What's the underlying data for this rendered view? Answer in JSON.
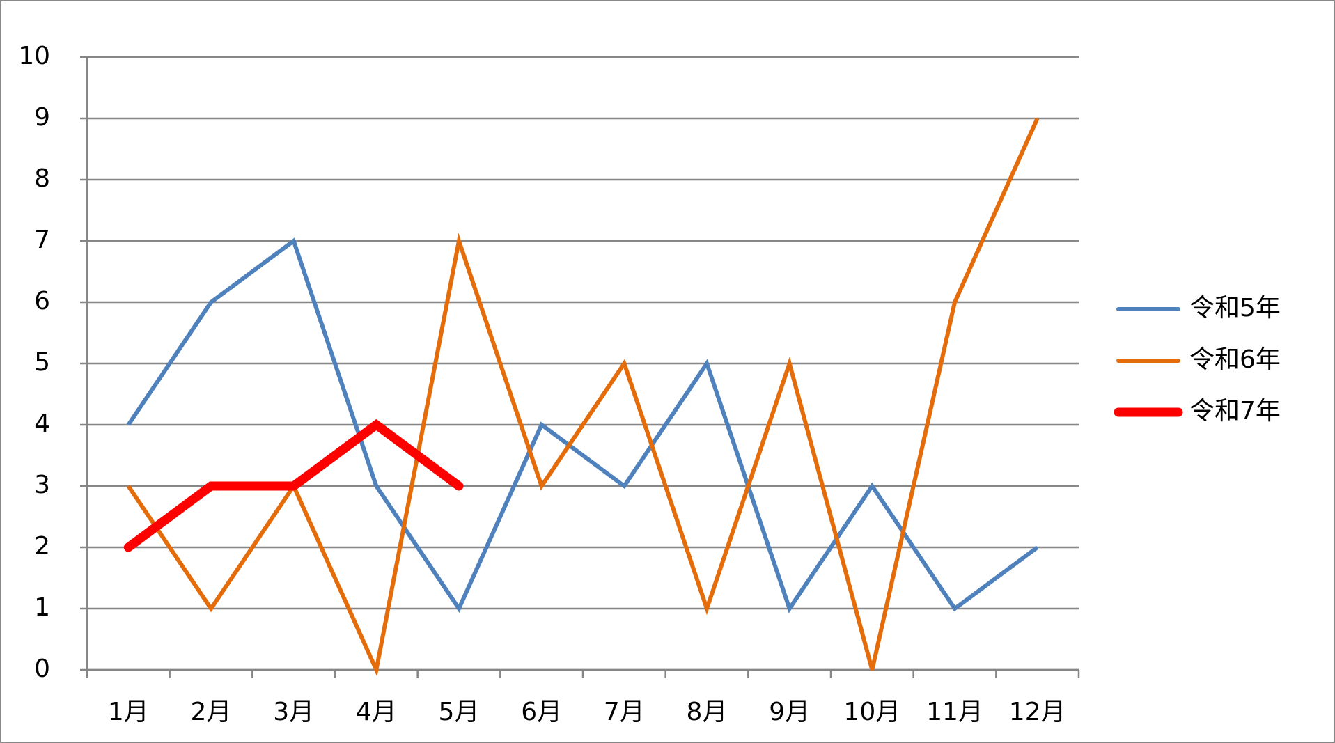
{
  "chart_data": {
    "type": "line",
    "categories": [
      "1月",
      "2月",
      "3月",
      "4月",
      "5月",
      "6月",
      "7月",
      "8月",
      "9月",
      "10月",
      "11月",
      "12月"
    ],
    "series": [
      {
        "name": "令和5年",
        "color": "#4f81bd",
        "values": [
          4,
          6,
          7,
          3,
          1,
          4,
          3,
          5,
          1,
          3,
          1,
          2
        ]
      },
      {
        "name": "令和6年",
        "color": "#e46c0a",
        "values": [
          3,
          1,
          3,
          0,
          7,
          3,
          5,
          1,
          5,
          0,
          6,
          9
        ]
      },
      {
        "name": "令和7年",
        "color": "#ff0000",
        "values": [
          2,
          3,
          3,
          4,
          3,
          null,
          null,
          null,
          null,
          null,
          null,
          null
        ]
      }
    ],
    "ylim": [
      0,
      10
    ],
    "yticks": [
      0,
      1,
      2,
      3,
      4,
      5,
      6,
      7,
      8,
      9,
      10
    ],
    "grid": true,
    "legend": "right"
  }
}
